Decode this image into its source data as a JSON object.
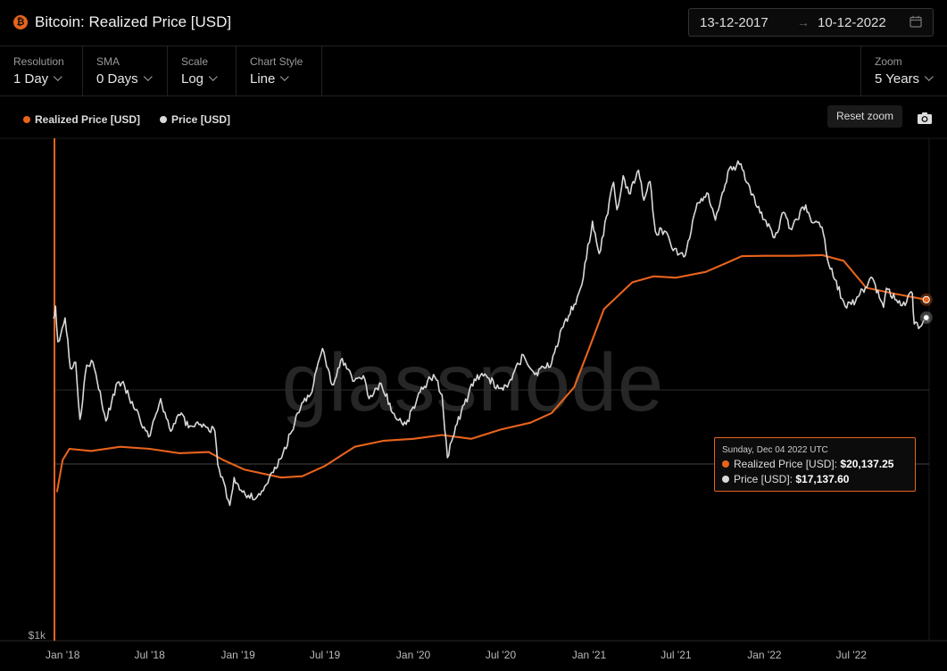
{
  "header": {
    "title": "Bitcoin: Realized Price [USD]",
    "icon": "bitcoin-icon",
    "date_from": "13-12-2017",
    "date_arrow": "→",
    "date_to": "10-12-2022"
  },
  "controls": {
    "resolution": {
      "label": "Resolution",
      "value": "1 Day"
    },
    "sma": {
      "label": "SMA",
      "value": "0 Days"
    },
    "scale": {
      "label": "Scale",
      "value": "Log"
    },
    "chart_style": {
      "label": "Chart Style",
      "value": "Line"
    },
    "zoom": {
      "label": "Zoom",
      "value": "5 Years"
    }
  },
  "legend": {
    "realized": "Realized Price [USD]",
    "price": "Price [USD]"
  },
  "reset_zoom": "Reset zoom",
  "watermark": "glassnode",
  "tooltip": {
    "date": "Sunday, Dec 04 2022 UTC",
    "realized_label": "Realized Price [USD]:",
    "realized_value": "$20,137.25",
    "price_label": "Price [USD]:",
    "price_value": "$17,137.60"
  },
  "colors": {
    "realized": "#e8631c",
    "price": "#d9d9d9",
    "background": "#000000"
  },
  "chart_data": {
    "type": "line",
    "title": "Bitcoin: Realized Price [USD]",
    "y_scale": "log",
    "y_tick_labels": [
      "$1k"
    ],
    "x_tick_labels": [
      "Jan '18",
      "Jul '18",
      "Jan '19",
      "Jul '19",
      "Jan '20",
      "Jul '20",
      "Jan '21",
      "Jul '21",
      "Jan '22",
      "Jul '22"
    ],
    "x_range": [
      "2017-12-13",
      "2022-12-10"
    ],
    "legend_position": "top-left",
    "series": [
      {
        "name": "Realized Price [USD]",
        "color": "#e8631c",
        "points": [
          [
            "2017-12-20",
            3600
          ],
          [
            "2018-01-01",
            4800
          ],
          [
            "2018-01-15",
            5300
          ],
          [
            "2018-03-01",
            5200
          ],
          [
            "2018-05-01",
            5400
          ],
          [
            "2018-07-01",
            5300
          ],
          [
            "2018-09-01",
            5100
          ],
          [
            "2018-11-01",
            5150
          ],
          [
            "2018-12-01",
            4800
          ],
          [
            "2019-01-15",
            4400
          ],
          [
            "2019-04-01",
            4100
          ],
          [
            "2019-05-15",
            4150
          ],
          [
            "2019-07-01",
            4550
          ],
          [
            "2019-09-01",
            5400
          ],
          [
            "2019-11-01",
            5700
          ],
          [
            "2020-01-01",
            5800
          ],
          [
            "2020-03-01",
            6000
          ],
          [
            "2020-05-01",
            5800
          ],
          [
            "2020-07-01",
            6300
          ],
          [
            "2020-09-01",
            6700
          ],
          [
            "2020-10-15",
            7300
          ],
          [
            "2020-12-01",
            9200
          ],
          [
            "2021-01-01",
            13000
          ],
          [
            "2021-02-01",
            18500
          ],
          [
            "2021-04-01",
            23500
          ],
          [
            "2021-05-15",
            24800
          ],
          [
            "2021-07-01",
            24500
          ],
          [
            "2021-09-01",
            25800
          ],
          [
            "2021-10-15",
            28000
          ],
          [
            "2021-11-15",
            29700
          ],
          [
            "2022-01-01",
            29800
          ],
          [
            "2022-03-01",
            29800
          ],
          [
            "2022-05-01",
            30000
          ],
          [
            "2022-06-15",
            28500
          ],
          [
            "2022-08-01",
            22400
          ],
          [
            "2022-10-01",
            21200
          ],
          [
            "2022-12-04",
            20137
          ]
        ]
      },
      {
        "name": "Price [USD]",
        "color": "#d9d9d9",
        "points": [
          [
            "2017-12-13",
            17000
          ],
          [
            "2017-12-17",
            19000
          ],
          [
            "2017-12-22",
            13800
          ],
          [
            "2018-01-06",
            17100
          ],
          [
            "2018-01-17",
            10900
          ],
          [
            "2018-01-28",
            11500
          ],
          [
            "2018-02-06",
            6900
          ],
          [
            "2018-02-20",
            11200
          ],
          [
            "2018-03-05",
            11500
          ],
          [
            "2018-04-01",
            6800
          ],
          [
            "2018-04-25",
            9600
          ],
          [
            "2018-05-10",
            9300
          ],
          [
            "2018-06-01",
            7500
          ],
          [
            "2018-06-29",
            5900
          ],
          [
            "2018-07-24",
            8300
          ],
          [
            "2018-08-14",
            6200
          ],
          [
            "2018-09-05",
            7300
          ],
          [
            "2018-09-20",
            6400
          ],
          [
            "2018-10-15",
            6600
          ],
          [
            "2018-11-14",
            6200
          ],
          [
            "2018-11-20",
            4600
          ],
          [
            "2018-12-15",
            3200
          ],
          [
            "2018-12-24",
            4100
          ],
          [
            "2019-01-10",
            3600
          ],
          [
            "2019-02-07",
            3400
          ],
          [
            "2019-03-01",
            3850
          ],
          [
            "2019-04-02",
            4900
          ],
          [
            "2019-05-14",
            8000
          ],
          [
            "2019-06-01",
            8600
          ],
          [
            "2019-06-26",
            13000
          ],
          [
            "2019-07-16",
            9400
          ],
          [
            "2019-08-06",
            11900
          ],
          [
            "2019-08-28",
            9700
          ],
          [
            "2019-09-19",
            10200
          ],
          [
            "2019-10-01",
            8300
          ],
          [
            "2019-10-26",
            9500
          ],
          [
            "2019-11-25",
            7000
          ],
          [
            "2019-12-17",
            6600
          ],
          [
            "2020-01-15",
            8800
          ],
          [
            "2020-02-12",
            10300
          ],
          [
            "2020-03-01",
            8600
          ],
          [
            "2020-03-12",
            4900
          ],
          [
            "2020-04-01",
            6600
          ],
          [
            "2020-05-07",
            9900
          ],
          [
            "2020-06-01",
            10200
          ],
          [
            "2020-06-27",
            9100
          ],
          [
            "2020-07-15",
            9200
          ],
          [
            "2020-08-17",
            12300
          ],
          [
            "2020-09-10",
            10300
          ],
          [
            "2020-10-15",
            11400
          ],
          [
            "2020-11-05",
            15600
          ],
          [
            "2020-12-01",
            19300
          ],
          [
            "2020-12-17",
            23000
          ],
          [
            "2021-01-08",
            40600
          ],
          [
            "2021-01-22",
            30400
          ],
          [
            "2021-02-21",
            57500
          ],
          [
            "2021-02-28",
            45000
          ],
          [
            "2021-03-13",
            61000
          ],
          [
            "2021-03-25",
            52000
          ],
          [
            "2021-04-14",
            64000
          ],
          [
            "2021-04-25",
            49000
          ],
          [
            "2021-05-08",
            58000
          ],
          [
            "2021-05-19",
            37000
          ],
          [
            "2021-06-10",
            37000
          ],
          [
            "2021-06-22",
            32000
          ],
          [
            "2021-07-20",
            29800
          ],
          [
            "2021-08-14",
            47800
          ],
          [
            "2021-09-06",
            52000
          ],
          [
            "2021-09-21",
            41000
          ],
          [
            "2021-10-20",
            65000
          ],
          [
            "2021-11-10",
            67500
          ],
          [
            "2021-11-28",
            57000
          ],
          [
            "2021-12-14",
            47000
          ],
          [
            "2022-01-22",
            35000
          ],
          [
            "2022-02-10",
            44000
          ],
          [
            "2022-02-24",
            38000
          ],
          [
            "2022-03-28",
            47000
          ],
          [
            "2022-04-12",
            40000
          ],
          [
            "2022-05-01",
            38500
          ],
          [
            "2022-05-12",
            29000
          ],
          [
            "2022-06-18",
            19000
          ],
          [
            "2022-07-01",
            19300
          ],
          [
            "2022-08-14",
            24400
          ],
          [
            "2022-09-06",
            18800
          ],
          [
            "2022-09-12",
            22300
          ],
          [
            "2022-10-15",
            19100
          ],
          [
            "2022-11-05",
            21300
          ],
          [
            "2022-11-09",
            16200
          ],
          [
            "2022-11-21",
            15800
          ],
          [
            "2022-12-04",
            17137
          ],
          [
            "2022-12-10",
            17100
          ]
        ]
      }
    ]
  }
}
